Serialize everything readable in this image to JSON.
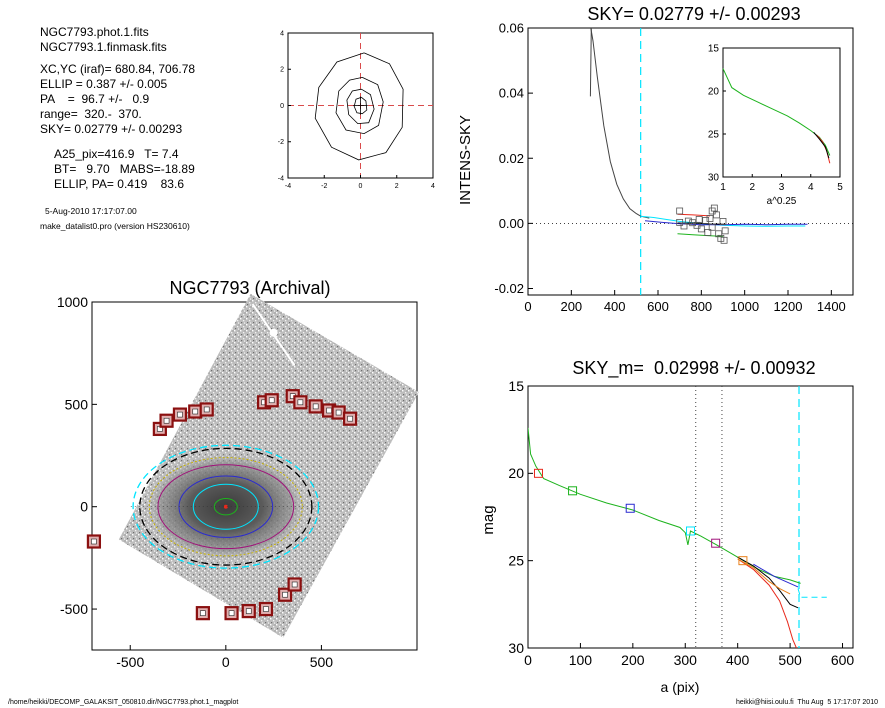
{
  "info": {
    "lines": [
      "NGC7793.phot.1.fits",
      "NGC7793.1.finmask.fits",
      "XC,YC (iraf)=    680.84, 706.78",
      "ELLIP = 0.387 +/- 0.005",
      "PA    =  96.7 +/-   0.9",
      "range=  320.-  370.",
      "SKY= 0.02779 +/- 0.00293",
      "A25_pix=416.9   T= 7.4",
      "BT=   9.70   MABS=-18.89",
      "ELLIP, PA= 0.419    83.6",
      "5-Aug-2010 17:17:07.00",
      "make_datalist0.pro (version HS230610)"
    ]
  },
  "footer": {
    "left": "/home/heikki/DECOMP_GALAKSIT_050810.dir/NGC7793.phot.1_magplot",
    "right": "heikki@hiisi.oulu.fi  Thu Aug  5 17:17:07 2010"
  },
  "colors": {
    "cyan": "#00e5ff",
    "red": "#e8291c",
    "green": "#1db31d",
    "blue": "#2a2ad0",
    "marker_red": "#8b1010",
    "magenta": "#a0107a",
    "olive": "#c8b400",
    "grey": "#555555"
  },
  "chart_data": [
    {
      "id": "contours",
      "type": "line",
      "xlim": [
        -4,
        4
      ],
      "ylim": [
        -4,
        4
      ],
      "x_ticks": [
        "-4",
        "-2",
        "0",
        "2",
        "4"
      ],
      "y_ticks": [
        "4",
        "2",
        "0",
        "-2",
        "-4"
      ],
      "contours": [
        [
          [
            0.05,
            0.45
          ],
          [
            0.3,
            0.25
          ],
          [
            0.35,
            -0.25
          ],
          [
            0.1,
            -0.45
          ],
          [
            -0.2,
            -0.4
          ],
          [
            -0.35,
            -0.05
          ],
          [
            -0.25,
            0.35
          ]
        ],
        [
          [
            0.05,
            0.9
          ],
          [
            0.55,
            0.6
          ],
          [
            0.75,
            -0.2
          ],
          [
            0.45,
            -0.95
          ],
          [
            -0.15,
            -1.0
          ],
          [
            -0.65,
            -0.5
          ],
          [
            -0.75,
            0.3
          ],
          [
            -0.45,
            0.8
          ]
        ],
        [
          [
            0.1,
            1.55
          ],
          [
            0.95,
            1.15
          ],
          [
            1.25,
            0.2
          ],
          [
            1.0,
            -1.1
          ],
          [
            0.2,
            -1.55
          ],
          [
            -0.8,
            -1.35
          ],
          [
            -1.35,
            -0.4
          ],
          [
            -1.2,
            0.8
          ],
          [
            -0.6,
            1.4
          ]
        ],
        [
          [
            0.2,
            2.9
          ],
          [
            1.6,
            2.3
          ],
          [
            2.35,
            0.9
          ],
          [
            2.3,
            -1.2
          ],
          [
            1.4,
            -2.6
          ],
          [
            -0.1,
            -3.0
          ],
          [
            -1.6,
            -2.3
          ],
          [
            -2.5,
            -0.7
          ],
          [
            -2.3,
            1.0
          ],
          [
            -1.3,
            2.4
          ]
        ]
      ]
    },
    {
      "id": "intens_sky",
      "type": "line",
      "title": "SKY= 0.02779 +/- 0.00293",
      "xlabel": "",
      "ylabel": "INTENS-SKY",
      "xlim": [
        0,
        1500
      ],
      "ylim": [
        -0.022,
        0.06
      ],
      "x_ticks": [
        "0",
        "200",
        "400",
        "600",
        "800",
        "1000",
        "1200",
        "1400"
      ],
      "y_ticks": [
        "0.06",
        "0.04",
        "0.02",
        "0.00",
        "-0.02"
      ],
      "series": [
        {
          "color": "grey",
          "points": [
            [
              290,
              0.06
            ],
            [
              300,
              0.056
            ],
            [
              320,
              0.045
            ],
            [
              350,
              0.03
            ],
            [
              380,
              0.019
            ],
            [
              410,
              0.012
            ],
            [
              440,
              0.0075
            ],
            [
              470,
              0.0045
            ],
            [
              500,
              0.003
            ],
            [
              520,
              0.0022
            ],
            [
              540,
              0.0019
            ],
            [
              560,
              0.0016
            ]
          ]
        },
        {
          "color": "grey",
          "points": [
            [
              288,
              0.039
            ],
            [
              292,
              0.06
            ]
          ]
        },
        {
          "color": "cyan",
          "points": [
            [
              520,
              0.0022
            ],
            [
              580,
              0.0018
            ],
            [
              640,
              0.0012
            ],
            [
              700,
              0.0006
            ],
            [
              760,
              0.0002
            ],
            [
              820,
              -0.0002
            ],
            [
              900,
              -0.0006
            ],
            [
              1000,
              -0.0008
            ],
            [
              1100,
              -0.0009
            ],
            [
              1200,
              -0.0008
            ],
            [
              1280,
              -0.0008
            ]
          ]
        },
        {
          "color": "blue",
          "points": [
            [
              540,
              0.0008
            ],
            [
              620,
              0.0003
            ],
            [
              700,
              -0.0001
            ],
            [
              800,
              -0.0004
            ],
            [
              900,
              -0.0004
            ],
            [
              1000,
              -0.0003
            ],
            [
              1100,
              -0.0004
            ],
            [
              1200,
              -0.0003
            ],
            [
              1290,
              -0.0003
            ]
          ]
        },
        {
          "color": "red",
          "points": [
            [
              690,
              0.0028
            ],
            [
              760,
              0.0026
            ],
            [
              840,
              0.0023
            ]
          ]
        },
        {
          "color": "green",
          "points": [
            [
              690,
              -0.0032
            ],
            [
              760,
              -0.0035
            ],
            [
              840,
              -0.0038
            ],
            [
              900,
              -0.004
            ]
          ]
        },
        {
          "color": "black",
          "points": [
            [
              690,
              0.0001
            ],
            [
              760,
              0.0001
            ],
            [
              840,
              -0.0002
            ],
            [
              910,
              -0.0003
            ]
          ]
        }
      ],
      "vlines": [
        {
          "x": 520,
          "color": "cyan",
          "dash": "long"
        }
      ],
      "hline": {
        "y": 0,
        "dash": "dot"
      },
      "squares": [
        [
          700,
          0.0003
        ],
        [
          720,
          -0.0008
        ],
        [
          740,
          0.0007
        ],
        [
          760,
          0.0002
        ],
        [
          780,
          -0.0006
        ],
        [
          790,
          0.0012
        ],
        [
          800,
          -0.0017
        ],
        [
          820,
          0.0009
        ],
        [
          830,
          -0.0028
        ],
        [
          840,
          0.0015
        ],
        [
          850,
          -0.0012
        ],
        [
          860,
          0.0047
        ],
        [
          870,
          0.0026
        ],
        [
          880,
          -0.0032
        ],
        [
          890,
          -0.0046
        ],
        [
          900,
          0.0006
        ],
        [
          905,
          -0.0052
        ],
        [
          910,
          -0.0023
        ],
        [
          700,
          0.0038
        ],
        [
          850,
          0.0038
        ]
      ],
      "inset": {
        "xlabel": "a^0.25",
        "xlim": [
          1,
          5
        ],
        "ylim": [
          15,
          30
        ],
        "x_ticks": [
          "1",
          "2",
          "3",
          "4",
          "5"
        ],
        "y_ticks": [
          "15",
          "20",
          "25",
          "30"
        ],
        "series": [
          {
            "color": "green",
            "points": [
              [
                1.0,
                17.4
              ],
              [
                1.3,
                19.6
              ],
              [
                1.7,
                20.5
              ],
              [
                2.2,
                21.3
              ],
              [
                2.7,
                22.1
              ],
              [
                3.2,
                22.9
              ],
              [
                3.6,
                23.7
              ],
              [
                4.0,
                24.6
              ],
              [
                4.3,
                25.4
              ],
              [
                4.5,
                26.3
              ],
              [
                4.65,
                27.5
              ]
            ]
          },
          {
            "color": "red",
            "points": [
              [
                4.2,
                25.1
              ],
              [
                4.4,
                25.9
              ],
              [
                4.55,
                27.0
              ],
              [
                4.65,
                28.4
              ]
            ]
          },
          {
            "color": "black",
            "points": [
              [
                4.1,
                24.8
              ],
              [
                4.3,
                25.6
              ],
              [
                4.5,
                26.5
              ],
              [
                4.62,
                27.8
              ]
            ]
          }
        ]
      }
    },
    {
      "id": "galaxy",
      "type": "image",
      "title": "NGC7793 (Archival)",
      "xlim": [
        -700,
        1000
      ],
      "ylim": [
        -700,
        1000
      ],
      "x_ticks": [
        "-500",
        "0",
        "500"
      ],
      "y_ticks": [
        "1000",
        "500",
        "0",
        "-500"
      ],
      "ellipses": [
        {
          "rx": 60,
          "ry": 40,
          "color": "green"
        },
        {
          "rx": 170,
          "ry": 110,
          "color": "cyan"
        },
        {
          "rx": 245,
          "ry": 150,
          "color": "blue"
        },
        {
          "rx": 355,
          "ry": 205,
          "color": "magenta"
        },
        {
          "rx": 400,
          "ry": 240,
          "color": "olive"
        },
        {
          "rx": 485,
          "ry": 300,
          "color": "cyan",
          "dash": true
        },
        {
          "rx": 450,
          "ry": 285,
          "color": "black",
          "dash": true
        }
      ],
      "markers": [
        [
          -345,
          380
        ],
        [
          -310,
          420
        ],
        [
          -240,
          450
        ],
        [
          -160,
          465
        ],
        [
          -100,
          475
        ],
        [
          200,
          510
        ],
        [
          240,
          520
        ],
        [
          350,
          540
        ],
        [
          390,
          510
        ],
        [
          470,
          490
        ],
        [
          540,
          470
        ],
        [
          590,
          460
        ],
        [
          650,
          430
        ],
        [
          -690,
          -170
        ],
        [
          -120,
          -520
        ],
        [
          30,
          -520
        ],
        [
          120,
          -510
        ],
        [
          210,
          -500
        ],
        [
          310,
          -430
        ],
        [
          360,
          -380
        ]
      ]
    },
    {
      "id": "sky_m",
      "type": "line",
      "title": "SKY_m=  0.02998 +/- 0.00932",
      "xlabel": "a (pix)",
      "ylabel": "mag",
      "xlim": [
        0,
        620
      ],
      "ylim": [
        15,
        30
      ],
      "x_ticks": [
        "0",
        "100",
        "200",
        "300",
        "400",
        "500",
        "600"
      ],
      "y_ticks": [
        "15",
        "20",
        "25",
        "30"
      ],
      "series": [
        {
          "color": "green",
          "points": [
            [
              0,
              17.4
            ],
            [
              5,
              18.9
            ],
            [
              15,
              19.6
            ],
            [
              30,
              20.3
            ],
            [
              60,
              20.7
            ],
            [
              100,
              21.2
            ],
            [
              150,
              21.7
            ],
            [
              200,
              22.1
            ],
            [
              250,
              22.7
            ],
            [
              290,
              23.1
            ],
            [
              300,
              23.4
            ],
            [
              305,
              24.1
            ],
            [
              310,
              23.3
            ],
            [
              330,
              23.6
            ],
            [
              360,
              24.1
            ],
            [
              400,
              24.8
            ],
            [
              440,
              25.5
            ],
            [
              470,
              25.9
            ],
            [
              500,
              26.1
            ],
            [
              520,
              26.3
            ]
          ]
        },
        {
          "color": "red",
          "points": [
            [
              400,
              24.9
            ],
            [
              430,
              25.5
            ],
            [
              460,
              26.4
            ],
            [
              480,
              27.3
            ],
            [
              495,
              28.5
            ],
            [
              505,
              29.5
            ],
            [
              512,
              30
            ]
          ]
        },
        {
          "color": "black",
          "points": [
            [
              400,
              24.8
            ],
            [
              430,
              25.3
            ],
            [
              460,
              26.0
            ],
            [
              480,
              26.7
            ],
            [
              500,
              27.5
            ],
            [
              515,
              27.7
            ]
          ]
        },
        {
          "color": "orange",
          "points": [
            [
              400,
              24.9
            ],
            [
              430,
              25.4
            ],
            [
              460,
              26.2
            ],
            [
              480,
              26.6
            ],
            [
              500,
              26.9
            ]
          ]
        },
        {
          "color": "blue",
          "points": [
            [
              430,
              25.2
            ],
            [
              470,
              25.9
            ],
            [
              500,
              26.3
            ],
            [
              515,
              26.5
            ]
          ]
        },
        {
          "color": "cyan",
          "points": [
            [
              515,
              26.6
            ],
            [
              520,
              27.1
            ],
            [
              570,
              27.1
            ]
          ]
        }
      ],
      "vlines": [
        {
          "x": 320,
          "color": "grey",
          "dash": "dot"
        },
        {
          "x": 370,
          "color": "grey",
          "dash": "dot"
        },
        {
          "x": 517,
          "color": "cyan",
          "dash": "long"
        }
      ],
      "squares": [
        {
          "x": 20,
          "y": 20.0,
          "color": "red"
        },
        {
          "x": 85,
          "y": 21.0,
          "color": "green"
        },
        {
          "x": 195,
          "y": 22.0,
          "color": "blue"
        },
        {
          "x": 310,
          "y": 23.3,
          "color": "cyan"
        },
        {
          "x": 358,
          "y": 24.0,
          "color": "magenta"
        },
        {
          "x": 410,
          "y": 25.0,
          "color": "orange"
        }
      ]
    }
  ]
}
